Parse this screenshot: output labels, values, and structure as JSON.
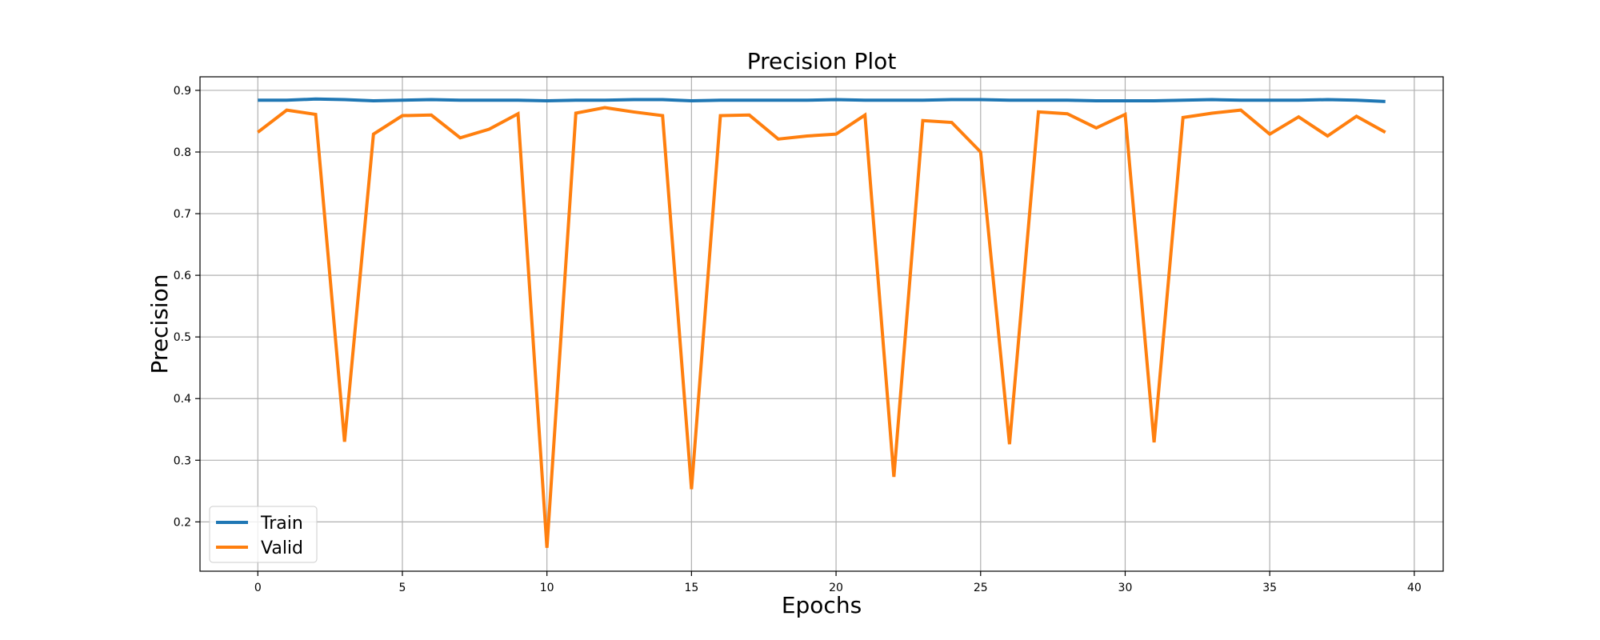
{
  "chart_data": {
    "type": "line",
    "title": "Precision Plot",
    "xlabel": "Epochs",
    "ylabel": "Precision",
    "xlim": [
      -2,
      41
    ],
    "ylim": [
      0.12,
      0.922
    ],
    "xticks": [
      0,
      5,
      10,
      15,
      20,
      25,
      30,
      35,
      40
    ],
    "yticks": [
      0.2,
      0.3,
      0.4,
      0.5,
      0.6,
      0.7,
      0.8,
      0.9
    ],
    "grid": true,
    "legend_position": "lower-left",
    "x": [
      0,
      1,
      2,
      3,
      4,
      5,
      6,
      7,
      8,
      9,
      10,
      11,
      12,
      13,
      14,
      15,
      16,
      17,
      18,
      19,
      20,
      21,
      22,
      23,
      24,
      25,
      26,
      27,
      28,
      29,
      30,
      31,
      32,
      33,
      34,
      35,
      36,
      37,
      38,
      39
    ],
    "series": [
      {
        "name": "Train",
        "color": "#1f77b4",
        "values": [
          0.884,
          0.884,
          0.886,
          0.885,
          0.883,
          0.884,
          0.885,
          0.884,
          0.884,
          0.884,
          0.883,
          0.884,
          0.884,
          0.885,
          0.885,
          0.883,
          0.884,
          0.884,
          0.884,
          0.884,
          0.885,
          0.884,
          0.884,
          0.884,
          0.885,
          0.885,
          0.884,
          0.884,
          0.884,
          0.883,
          0.883,
          0.883,
          0.884,
          0.885,
          0.884,
          0.884,
          0.884,
          0.885,
          0.884,
          0.882
        ]
      },
      {
        "name": "Valid",
        "color": "#ff7f0e",
        "values": [
          0.832,
          0.868,
          0.861,
          0.33,
          0.829,
          0.859,
          0.86,
          0.823,
          0.837,
          0.862,
          0.158,
          0.863,
          0.872,
          0.865,
          0.859,
          0.253,
          0.859,
          0.86,
          0.821,
          0.826,
          0.829,
          0.86,
          0.273,
          0.851,
          0.848,
          0.8,
          0.326,
          0.865,
          0.862,
          0.839,
          0.861,
          0.329,
          0.856,
          0.863,
          0.868,
          0.829,
          0.857,
          0.826,
          0.858,
          0.832
        ]
      }
    ]
  }
}
